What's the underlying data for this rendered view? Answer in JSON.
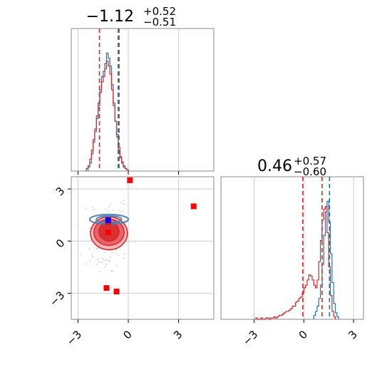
{
  "chart_data": [
    {
      "panel": "top-left",
      "type": "histogram",
      "title": "-1.12",
      "title_sup": "+0.52",
      "title_sub": "-0.51",
      "xlim": [
        -3.4,
        5.1
      ],
      "ylim": [
        0,
        1
      ],
      "grid": true,
      "series": [
        {
          "color": "#1f77b4",
          "bins": [
            -2.4,
            -2.3,
            -2.2,
            -2.1,
            -2.0,
            -1.9,
            -1.8,
            -1.7,
            -1.6,
            -1.5,
            -1.4,
            -1.3,
            -1.2,
            -1.1,
            -1.0,
            -0.9,
            -0.8,
            -0.7,
            -0.6,
            -0.5,
            -0.4,
            -0.3,
            -0.2,
            -0.1,
            0.0
          ],
          "counts": [
            0.03,
            0.06,
            0.13,
            0.22,
            0.3,
            0.4,
            0.52,
            0.62,
            0.72,
            0.76,
            0.82,
            0.9,
            0.86,
            0.8,
            0.66,
            0.52,
            0.38,
            0.26,
            0.16,
            0.1,
            0.06,
            0.03,
            0.02,
            0.01
          ]
        },
        {
          "color": "#d62728",
          "bins": [
            -2.5,
            -2.4,
            -2.3,
            -2.2,
            -2.1,
            -2.0,
            -1.9,
            -1.8,
            -1.7,
            -1.6,
            -1.5,
            -1.4,
            -1.3,
            -1.2,
            -1.1,
            -1.0,
            -0.9,
            -0.8,
            -0.7,
            -0.6,
            -0.5,
            -0.4,
            -0.3,
            -0.2,
            -0.1,
            0.0
          ],
          "counts": [
            0.02,
            0.04,
            0.09,
            0.16,
            0.24,
            0.32,
            0.42,
            0.5,
            0.6,
            0.68,
            0.72,
            0.78,
            0.84,
            0.8,
            0.74,
            0.62,
            0.5,
            0.38,
            0.28,
            0.18,
            0.11,
            0.07,
            0.04,
            0.02,
            0.01
          ]
        }
      ],
      "vlines": [
        {
          "x": -1.72,
          "color": "#d62728"
        },
        {
          "x": -0.6,
          "color": "#d62728"
        },
        {
          "x": -0.55,
          "color": "#1f77b4"
        }
      ]
    },
    {
      "panel": "bottom-left",
      "type": "contour-scatter",
      "xlim": [
        -3.4,
        5.1
      ],
      "ylim": [
        -4.5,
        3.7
      ],
      "xticks": [
        "-3",
        "0",
        "3"
      ],
      "yticks": [
        "3",
        "0",
        "-3"
      ],
      "xtick_values": [
        -3,
        0,
        3
      ],
      "ytick_values": [
        3,
        0,
        -3
      ],
      "grid": true,
      "red_markers": [
        [
          0.1,
          3.5
        ],
        [
          3.9,
          2.0
        ],
        [
          -1.2,
          0.5
        ],
        [
          -1.3,
          -2.7
        ],
        [
          -0.7,
          -2.9
        ],
        [
          -1.2,
          1.1
        ]
      ],
      "blue_markers": [
        [
          -1.2,
          1.2
        ]
      ],
      "red_contours": [
        {
          "cx": -1.15,
          "cy": 0.45,
          "rx": 1.1,
          "ry": 0.95,
          "fill": "#f4a7ab"
        },
        {
          "cx": -1.15,
          "cy": 0.5,
          "rx": 0.9,
          "ry": 0.75,
          "fill": "#e8555c"
        },
        {
          "cx": -1.15,
          "cy": 0.55,
          "rx": 0.6,
          "ry": 0.55,
          "fill": "#d62728"
        }
      ],
      "blue_contours": [
        {
          "cx": -1.15,
          "cy": 1.25,
          "rx": 1.15,
          "ry": 0.28
        },
        {
          "cx": -1.15,
          "cy": 1.25,
          "rx": 0.75,
          "ry": 0.2
        }
      ]
    },
    {
      "panel": "bottom-right",
      "type": "histogram",
      "title": "0.46",
      "title_sup": "+0.57",
      "title_sub": "-0.60",
      "xlim": [
        -5.0,
        3.6
      ],
      "ylim": [
        0,
        1
      ],
      "xticks": [
        "-3",
        "0",
        "3"
      ],
      "xtick_values": [
        -3,
        0,
        3
      ],
      "grid": true,
      "series": [
        {
          "color": "#1f77b4",
          "bins": [
            0.6,
            0.7,
            0.8,
            0.9,
            1.0,
            1.1,
            1.2,
            1.3,
            1.4,
            1.5,
            1.6,
            1.7,
            1.8,
            1.9,
            2.0
          ],
          "counts": [
            0.03,
            0.06,
            0.1,
            0.16,
            0.26,
            0.42,
            0.64,
            0.82,
            0.9,
            0.74,
            0.5,
            0.28,
            0.12,
            0.05,
            0.02
          ]
        },
        {
          "color": "#d62728",
          "bins": [
            -2.9,
            -2.8,
            -2.7,
            -2.6,
            -2.5,
            -2.4,
            -2.3,
            -2.2,
            -2.1,
            -2.0,
            -1.9,
            -1.8,
            -1.7,
            -1.6,
            -1.5,
            -1.4,
            -1.3,
            -1.2,
            -1.1,
            -1.0,
            -0.9,
            -0.8,
            -0.7,
            -0.6,
            -0.5,
            -0.4,
            -0.3,
            -0.2,
            -0.1,
            0.0,
            0.1,
            0.2,
            0.3,
            0.4,
            0.5,
            0.6,
            0.7,
            0.8,
            0.9,
            1.0,
            1.1,
            1.2,
            1.3,
            1.4,
            1.5,
            1.6,
            1.7,
            1.8
          ],
          "counts": [
            0.01,
            0.0,
            0.0,
            0.01,
            0.0,
            0.0,
            0.01,
            0.01,
            0.0,
            0.01,
            0.01,
            0.02,
            0.01,
            0.02,
            0.03,
            0.03,
            0.04,
            0.05,
            0.06,
            0.06,
            0.07,
            0.08,
            0.1,
            0.1,
            0.13,
            0.14,
            0.16,
            0.17,
            0.2,
            0.24,
            0.26,
            0.3,
            0.34,
            0.33,
            0.3,
            0.26,
            0.24,
            0.3,
            0.44,
            0.6,
            0.76,
            0.84,
            0.86,
            0.66,
            0.4,
            0.18,
            0.06,
            0.02
          ]
        }
      ],
      "vlines": [
        {
          "x": -0.06,
          "color": "#d62728"
        },
        {
          "x": 1.1,
          "color": "#d62728"
        },
        {
          "x": 1.55,
          "color": "#1f77b4"
        }
      ]
    }
  ]
}
